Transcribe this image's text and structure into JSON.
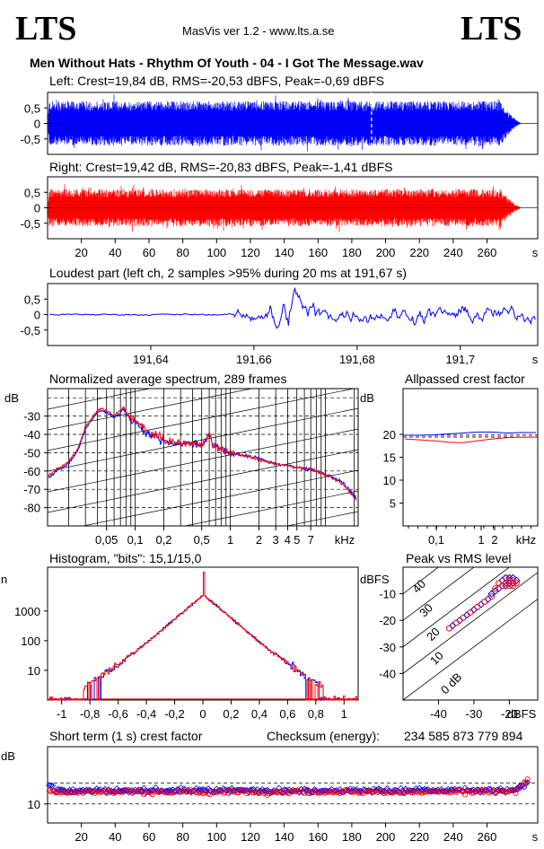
{
  "header": {
    "logo_left": "LTS",
    "logo_right": "LTS",
    "app_title": "MasVis ver 1.2 - www.lts.a.se",
    "file_title": "Men Without Hats - Rhythm Of Youth  - 04 - I Got The Message.wav"
  },
  "colors": {
    "left": "#0000ff",
    "right": "#ff0000",
    "axis": "#000000"
  },
  "chart_data": [
    {
      "id": "left-waveform",
      "type": "area",
      "title": "Left: Crest=19,84 dB, RMS=-20,53 dBFS, Peak=-0,69 dBFS",
      "y_ticks": [
        "0,5",
        "0",
        "-0,5"
      ],
      "ylim": [
        -1,
        1
      ],
      "xlim": [
        0,
        290
      ],
      "envelope": {
        "fade_in_end_s": 1,
        "level": 0.72,
        "fade_out_start_s": 268,
        "end_s": 281
      },
      "marker_s": 191.67
    },
    {
      "id": "right-waveform",
      "type": "area",
      "title": "Right: Crest=19,42 dB, RMS=-20,83 dBFS, Peak=-1,41 dBFS",
      "y_ticks": [
        "0,5",
        "0",
        "-0,5"
      ],
      "ylim": [
        -1,
        1
      ],
      "xlim": [
        0,
        290
      ],
      "x_ticks": [
        "20",
        "40",
        "60",
        "80",
        "100",
        "120",
        "140",
        "160",
        "180",
        "200",
        "220",
        "240",
        "260"
      ],
      "xunit": "s",
      "envelope": {
        "fade_in_end_s": 1,
        "level": 0.6,
        "fade_out_start_s": 268,
        "end_s": 281
      }
    },
    {
      "id": "loudest-part",
      "type": "line",
      "title": "Loudest part (left  ch, 2 samples >95% during 20 ms at 191,67 s)",
      "y_ticks": [
        "0,5",
        "0",
        "-0,5"
      ],
      "ylim": [
        -1,
        1
      ],
      "xlim": [
        191.62,
        191.715
      ],
      "x_ticks": [
        "191,64",
        "191,66",
        "191,68",
        "191,7"
      ],
      "xunit": "s"
    },
    {
      "id": "avg-spectrum",
      "type": "line",
      "title": "Normalized average spectrum, 289 frames",
      "ylabel": "dB",
      "y_ticks": [
        "-30",
        "-40",
        "-50",
        "-60",
        "-70",
        "-80"
      ],
      "ylim": [
        -90,
        -15
      ],
      "x_ticks": [
        "0,05",
        "0,1",
        "0,2",
        "0,5",
        "1",
        "2",
        "3",
        "4",
        "5",
        "7"
      ],
      "xunit": "kHz",
      "xlim_khz": [
        0.012,
        22.05
      ],
      "series": [
        {
          "name": "",
          "points_khz_db": [
            [
              0.012,
              -64
            ],
            [
              0.015,
              -60
            ],
            [
              0.02,
              -56
            ],
            [
              0.025,
              -49
            ],
            [
              0.03,
              -37
            ],
            [
              0.04,
              -28
            ],
            [
              0.045,
              -27
            ],
            [
              0.05,
              -28
            ],
            [
              0.06,
              -31
            ],
            [
              0.07,
              -28
            ],
            [
              0.075,
              -26
            ],
            [
              0.085,
              -31
            ],
            [
              0.1,
              -33
            ],
            [
              0.13,
              -39
            ],
            [
              0.16,
              -41
            ],
            [
              0.2,
              -44
            ],
            [
              0.3,
              -45
            ],
            [
              0.4,
              -45
            ],
            [
              0.5,
              -46
            ],
            [
              0.6,
              -40
            ],
            [
              0.65,
              -46
            ],
            [
              0.8,
              -48
            ],
            [
              1,
              -50
            ],
            [
              1.5,
              -52
            ],
            [
              2,
              -53
            ],
            [
              3,
              -56
            ],
            [
              5,
              -58
            ],
            [
              7,
              -59
            ],
            [
              10,
              -62
            ],
            [
              15,
              -66
            ],
            [
              22,
              -76
            ]
          ]
        },
        {
          "name": "",
          "points_khz_db": [
            [
              0.012,
              -63
            ],
            [
              0.015,
              -59
            ],
            [
              0.02,
              -55
            ],
            [
              0.025,
              -48
            ],
            [
              0.03,
              -36
            ],
            [
              0.04,
              -27
            ],
            [
              0.045,
              -26
            ],
            [
              0.05,
              -27
            ],
            [
              0.06,
              -30
            ],
            [
              0.07,
              -27
            ],
            [
              0.075,
              -25
            ],
            [
              0.085,
              -30
            ],
            [
              0.1,
              -32
            ],
            [
              0.13,
              -38
            ],
            [
              0.16,
              -40
            ],
            [
              0.2,
              -43
            ],
            [
              0.3,
              -45
            ],
            [
              0.4,
              -45
            ],
            [
              0.5,
              -46
            ],
            [
              0.6,
              -39
            ],
            [
              0.65,
              -46
            ],
            [
              0.8,
              -48
            ],
            [
              1,
              -50
            ],
            [
              1.5,
              -52
            ],
            [
              2,
              -54
            ],
            [
              3,
              -56
            ],
            [
              5,
              -58
            ],
            [
              7,
              -59
            ],
            [
              10,
              -62
            ],
            [
              15,
              -67
            ],
            [
              22,
              -77
            ]
          ]
        }
      ]
    },
    {
      "id": "allpassed-crest",
      "type": "line",
      "title": "Allpassed crest factor",
      "ylabel": "dB",
      "y_ticks": [
        "20",
        "15",
        "10",
        "5"
      ],
      "ylim": [
        0,
        30
      ],
      "x_ticks": [
        "0,1",
        "1",
        "2",
        "kHz"
      ],
      "series": [
        {
          "name": "",
          "values": [
            19.8,
            19.8,
            19.9,
            20.1,
            20.3,
            20.5,
            20.5,
            20.3,
            20.4,
            20.4
          ]
        },
        {
          "name": "",
          "values": [
            19.0,
            18.8,
            18.6,
            18.3,
            18.2,
            18.6,
            19.0,
            19.3,
            19.4,
            19.4
          ]
        }
      ],
      "dashed_ref_db": [
        19.84,
        19.42
      ]
    },
    {
      "id": "histogram",
      "type": "line",
      "title": "Histogram, \"bits\": 15,1/15,0",
      "ylabel": "n",
      "y_ticks": [
        "1000",
        "100",
        "10"
      ],
      "yscale": "log",
      "ylim": [
        1,
        30000
      ],
      "x_ticks": [
        "-1",
        "-0,8",
        "-0,6",
        "-0,4",
        "-0,2",
        "0",
        "0,2",
        "0,4",
        "0,6",
        "0,8",
        "1"
      ],
      "xlim": [
        -1.1,
        1.1
      ],
      "shape": {
        "peak_count": 3500,
        "spike_count": 20000,
        "edge": 0.82
      }
    },
    {
      "id": "peak-vs-rms",
      "type": "scatter",
      "title": "Peak vs RMS level",
      "ylabel": "dBFS",
      "xunit": "dBFS",
      "y_ticks": [
        "-10",
        "-20",
        "-30",
        "-40"
      ],
      "x_ticks": [
        "-40",
        "-30",
        "-20"
      ],
      "xlim": [
        -50,
        -12
      ],
      "ylim": [
        -50,
        0
      ],
      "diagonals": [
        "40",
        "30",
        "20",
        "10",
        "0 dB"
      ],
      "series": [
        {
          "name": "",
          "points": [
            [
              -21,
              -4
            ],
            [
              -20,
              -5
            ],
            [
              -19,
              -4
            ],
            [
              -20,
              -6
            ],
            [
              -21,
              -7
            ],
            [
              -22,
              -5
            ],
            [
              -23,
              -8
            ],
            [
              -24,
              -9
            ],
            [
              -25,
              -10
            ],
            [
              -26,
              -12
            ],
            [
              -28,
              -14
            ],
            [
              -30,
              -16
            ],
            [
              -32,
              -18
            ],
            [
              -34,
              -20
            ],
            [
              -36,
              -22
            ],
            [
              -20,
              -4
            ],
            [
              -19,
              -6
            ],
            [
              -18,
              -5
            ]
          ]
        },
        {
          "name": "",
          "points": [
            [
              -20,
              -5
            ],
            [
              -19,
              -5
            ],
            [
              -21,
              -6
            ],
            [
              -22,
              -7
            ],
            [
              -20,
              -7
            ],
            [
              -23,
              -6
            ],
            [
              -24,
              -8
            ],
            [
              -25,
              -11
            ],
            [
              -27,
              -13
            ],
            [
              -29,
              -15
            ],
            [
              -31,
              -17
            ],
            [
              -33,
              -19
            ],
            [
              -35,
              -21
            ],
            [
              -37,
              -23
            ],
            [
              -21,
              -4
            ],
            [
              -19,
              -7
            ],
            [
              -18,
              -6
            ]
          ]
        }
      ]
    },
    {
      "id": "short-term-crest",
      "type": "scatter",
      "title": "Short term (1 s) crest factor",
      "ylabel": "dB",
      "y_ticks": [
        "10"
      ],
      "ylim": [
        5,
        25
      ],
      "xlim": [
        0,
        290
      ],
      "x_ticks": [
        "20",
        "40",
        "60",
        "80",
        "100",
        "120",
        "140",
        "160",
        "180",
        "200",
        "220",
        "240",
        "260"
      ],
      "xunit": "s",
      "checksum_label": "Checksum (energy):",
      "checksum_value": "234 585 873 779 894",
      "mean_level_db": 13.5,
      "upper_dashed_db": 15.5,
      "lower_dashed_db": 10
    }
  ]
}
